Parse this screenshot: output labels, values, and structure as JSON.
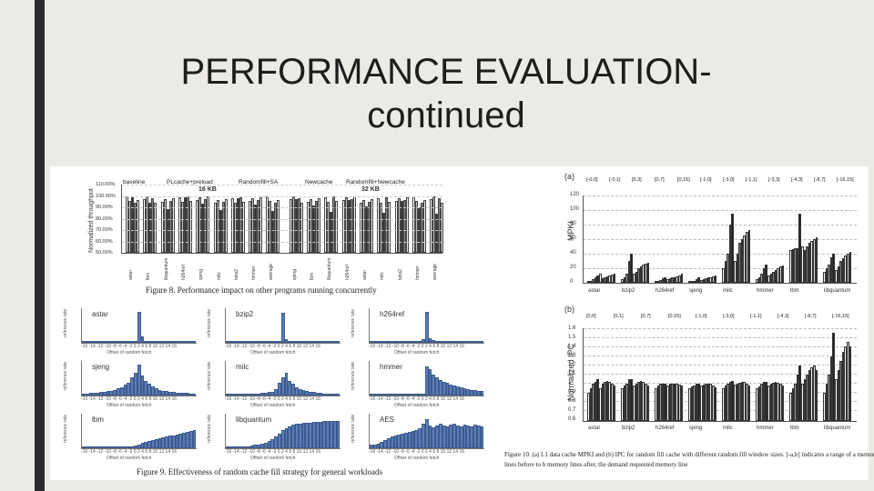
{
  "slide": {
    "title_line1": "PERFORMANCE EVALUATION-",
    "title_line2": "continued",
    "accent_color": "#2a2a2a"
  },
  "fig8": {
    "legend": [
      "baseline",
      "PLcache+preload",
      "Randomfill+SA",
      "Newcache",
      "Randomfill+Newcache"
    ],
    "ylabel": "Normalized throughput",
    "yticks": [
      "110.00%",
      "100.00%",
      "90.00%",
      "80.00%",
      "70.00%",
      "60.00%",
      "50.00%"
    ],
    "group1_label": "16 KB",
    "group2_label": "32 KB",
    "xticks": [
      "astar",
      "lbm",
      "libquantum",
      "h264ref",
      "sjeng",
      "milc",
      "bzip2",
      "hmmer",
      "average",
      "sjeng",
      "lbm",
      "libquantum",
      "h264ref",
      "astar",
      "milc",
      "bzip2",
      "hmmer",
      "average"
    ],
    "caption": "Figure 8.    Performance impact on other programs running concurrently"
  },
  "fig9": {
    "caption": "Figure 9.    Effectiveness of random cache fill strategy  for general workloads",
    "ylabel": "reference rate",
    "xlabel": "Offset of random fetch",
    "xticks": "-16 -14 -12 -10 -8 -6 -4 -2 0 2 4 6 8 10 12 14 16",
    "panels": [
      {
        "name": "astar",
        "values": [
          0,
          0,
          0,
          0,
          0,
          0,
          0,
          0,
          0,
          0,
          0,
          0,
          0,
          0,
          0,
          0.05,
          0.95,
          0.2,
          0.05,
          0.03,
          0.02,
          0.02,
          0.01,
          0.01,
          0.01,
          0.01,
          0,
          0,
          0,
          0,
          0,
          0,
          0
        ]
      },
      {
        "name": "bzip2",
        "values": [
          0,
          0,
          0,
          0,
          0,
          0,
          0,
          0,
          0,
          0,
          0,
          0,
          0,
          0,
          0,
          0.05,
          0.92,
          0.1,
          0.03,
          0.02,
          0.01,
          0.01,
          0,
          0,
          0,
          0,
          0,
          0,
          0,
          0,
          0,
          0,
          0
        ]
      },
      {
        "name": "h264ref",
        "values": [
          0,
          0,
          0,
          0,
          0,
          0,
          0,
          0,
          0,
          0,
          0,
          0,
          0,
          0,
          0.05,
          0.1,
          0.95,
          0.15,
          0.08,
          0.06,
          0.05,
          0.05,
          0.04,
          0.04,
          0.03,
          0.03,
          0.03,
          0.03,
          0.02,
          0.02,
          0.02,
          0.02,
          0.02
        ]
      },
      {
        "name": "sjeng",
        "values": [
          0.05,
          0.06,
          0.07,
          0.08,
          0.09,
          0.1,
          0.12,
          0.13,
          0.15,
          0.18,
          0.22,
          0.25,
          0.32,
          0.4,
          0.55,
          0.7,
          0.95,
          0.6,
          0.45,
          0.35,
          0.28,
          0.22,
          0.18,
          0.15,
          0.13,
          0.12,
          0.1,
          0.09,
          0.08,
          0.08,
          0.07,
          0.06,
          0.05
        ]
      },
      {
        "name": "milc",
        "values": [
          0.02,
          0.02,
          0.03,
          0.03,
          0.03,
          0.04,
          0.04,
          0.05,
          0.05,
          0.06,
          0.07,
          0.08,
          0.1,
          0.12,
          0.2,
          0.4,
          0.55,
          0.7,
          0.45,
          0.35,
          0.25,
          0.2,
          0.18,
          0.15,
          0.12,
          0.1,
          0.08,
          0.07,
          0.06,
          0.05,
          0.05,
          0.04,
          0.04
        ]
      },
      {
        "name": "hmmer",
        "values": [
          0,
          0,
          0,
          0,
          0,
          0,
          0,
          0,
          0,
          0,
          0,
          0,
          0,
          0,
          0,
          0.05,
          0.9,
          0.8,
          0.65,
          0.55,
          0.48,
          0.42,
          0.38,
          0.34,
          0.3,
          0.27,
          0.24,
          0.22,
          0.2,
          0.18,
          0.16,
          0.15,
          0.14
        ]
      },
      {
        "name": "lbm",
        "values": [
          0.01,
          0.01,
          0.01,
          0.01,
          0.01,
          0.01,
          0.01,
          0.01,
          0.02,
          0.02,
          0.02,
          0.03,
          0.03,
          0.04,
          0.05,
          0.08,
          0.12,
          0.18,
          0.2,
          0.22,
          0.25,
          0.28,
          0.3,
          0.32,
          0.35,
          0.38,
          0.4,
          0.42,
          0.45,
          0.48,
          0.5,
          0.52,
          0.55
        ]
      },
      {
        "name": "libquantum",
        "values": [
          0.02,
          0.02,
          0.03,
          0.03,
          0.04,
          0.05,
          0.06,
          0.08,
          0.1,
          0.12,
          0.15,
          0.18,
          0.22,
          0.28,
          0.35,
          0.45,
          0.55,
          0.62,
          0.68,
          0.72,
          0.74,
          0.76,
          0.77,
          0.78,
          0.79,
          0.8,
          0.8,
          0.81,
          0.82,
          0.82,
          0.83,
          0.83,
          0.84
        ]
      },
      {
        "name": "AES",
        "values": [
          0.1,
          0.12,
          0.15,
          0.2,
          0.25,
          0.3,
          0.35,
          0.4,
          0.42,
          0.45,
          0.48,
          0.5,
          0.52,
          0.55,
          0.6,
          0.75,
          0.9,
          0.7,
          0.65,
          0.7,
          0.75,
          0.7,
          0.68,
          0.72,
          0.75,
          0.7,
          0.68,
          0.72,
          0.7,
          0.68,
          0.72,
          0.7,
          0.68
        ]
      }
    ]
  },
  "fig10": {
    "a_label": "(a)",
    "b_label": "(b)",
    "legend_a": [
      "[-0,0]",
      "[-0,1]",
      "[0,3]",
      "[0,7]",
      "[0,15]",
      "[-1,0]",
      "[-3,0]",
      "[-1,1]",
      "[-3,3]",
      "[-4,3]",
      "[-8,7]",
      "[-16,15]"
    ],
    "legend_b": [
      "[0,0]",
      "[0,1]",
      "[0,7]",
      "[0,15]",
      "[-1,0]",
      "[-3,0]",
      "[-1,1]",
      "[-4,3]",
      "[-8,7]",
      "[-16,15]"
    ],
    "mpki_label": "MPKI",
    "ipc_label": "Normalized IPC",
    "mpki_ticks": [
      "120",
      "100",
      "80",
      "60",
      "40",
      "20",
      "0"
    ],
    "ipc_ticks": [
      "1.6",
      "1.5",
      "1.4",
      "1.3",
      "1.2",
      "1.1",
      "1",
      "0.9",
      "0.8",
      "0.7",
      "0.6"
    ],
    "benchmarks": [
      "astar",
      "bzip2",
      "h264ref",
      "sjeng",
      "milc",
      "hmmer",
      "lbm",
      "libquantum"
    ],
    "caption_line1": "Figure 10.   (a) L1 data cache MPKI and (b) IPC for random fill cache with different random fill window sizes. [-a,b] indicates a range of a memory",
    "caption_line2": "lines before to b memory lines after, the demand requested memory line"
  }
}
